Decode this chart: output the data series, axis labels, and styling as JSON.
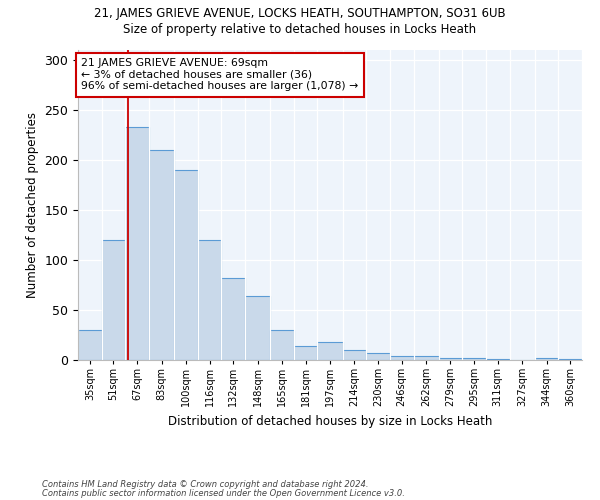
{
  "title1": "21, JAMES GRIEVE AVENUE, LOCKS HEATH, SOUTHAMPTON, SO31 6UB",
  "title2": "Size of property relative to detached houses in Locks Heath",
  "xlabel": "Distribution of detached houses by size in Locks Heath",
  "ylabel": "Number of detached properties",
  "footnote1": "Contains HM Land Registry data © Crown copyright and database right 2024.",
  "footnote2": "Contains public sector information licensed under the Open Government Licence v3.0.",
  "annotation_line1": "21 JAMES GRIEVE AVENUE: 69sqm",
  "annotation_line2": "← 3% of detached houses are smaller (36)",
  "annotation_line3": "96% of semi-detached houses are larger (1,078) →",
  "bar_color": "#c9d9ea",
  "bar_edge_color": "#5b9bd5",
  "property_line_color": "#cc0000",
  "categories": [
    "35sqm",
    "51sqm",
    "67sqm",
    "83sqm",
    "100sqm",
    "116sqm",
    "132sqm",
    "148sqm",
    "165sqm",
    "181sqm",
    "197sqm",
    "214sqm",
    "230sqm",
    "246sqm",
    "262sqm",
    "279sqm",
    "295sqm",
    "311sqm",
    "327sqm",
    "344sqm",
    "360sqm"
  ],
  "bin_edges": [
    35,
    51,
    67,
    83,
    100,
    116,
    132,
    148,
    165,
    181,
    197,
    214,
    230,
    246,
    262,
    279,
    295,
    311,
    327,
    344,
    360,
    376
  ],
  "values": [
    30,
    120,
    233,
    210,
    190,
    120,
    82,
    64,
    30,
    14,
    18,
    10,
    7,
    4,
    4,
    2,
    2,
    1,
    0,
    2,
    1
  ],
  "ylim": [
    0,
    310
  ],
  "yticks": [
    0,
    50,
    100,
    150,
    200,
    250,
    300
  ],
  "property_size": 69,
  "bg_color": "#eef4fb"
}
